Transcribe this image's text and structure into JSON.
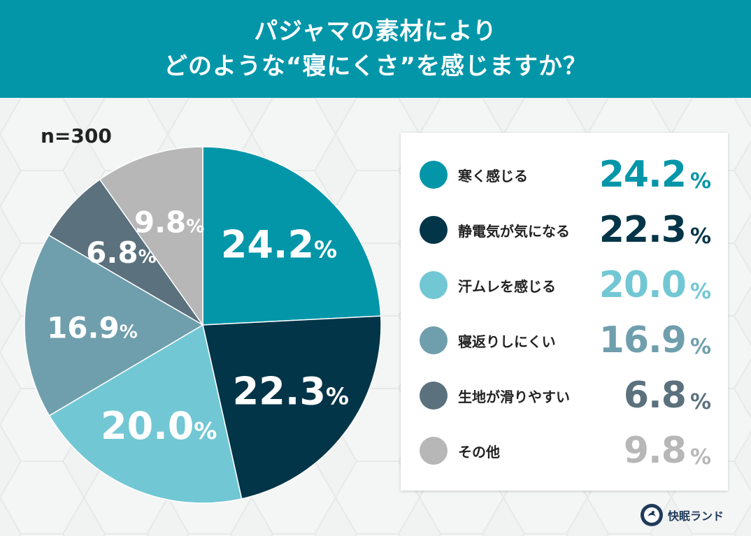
{
  "header": {
    "title_line1": "パジャマの素材により",
    "title_line2": "どのような“寝にくさ”を感じますか？"
  },
  "sample": "n=300",
  "chart_data": {
    "type": "pie",
    "unit": "%",
    "categories": [
      "寒く感じる",
      "静電気が気になる",
      "汗ムレを感じる",
      "寝返りしにくい",
      "生地が滑りやすい",
      "その他"
    ],
    "values": [
      24.2,
      22.3,
      20.0,
      16.9,
      6.8,
      9.8
    ],
    "value_labels": [
      "24.2",
      "22.3",
      "20.0",
      "16.9",
      "6.8",
      "9.8"
    ],
    "colors": [
      "#0396a9",
      "#033548",
      "#72c7d4",
      "#6f9ead",
      "#5b717d",
      "#b7b7b7"
    ],
    "legend_position": "right"
  },
  "logo": {
    "icon": "sleep-logo-icon",
    "text": "快眠ランド"
  }
}
